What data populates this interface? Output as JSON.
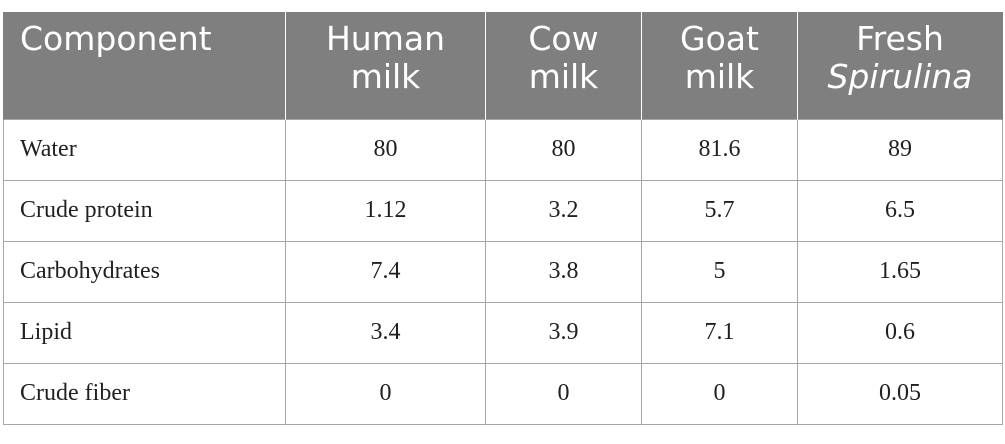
{
  "table": {
    "headers": [
      {
        "line1": "Component",
        "line2": ""
      },
      {
        "line1": "Human",
        "line2": "milk"
      },
      {
        "line1": "Cow",
        "line2": "milk"
      },
      {
        "line1": "Goat",
        "line2": "milk"
      },
      {
        "line1": "Fresh",
        "line2": "Spirulina"
      }
    ],
    "rows": [
      {
        "component": "Water",
        "human": "80",
        "cow": "80",
        "goat": "81.6",
        "spirulina": "89"
      },
      {
        "component": "Crude protein",
        "human": "1.12",
        "cow": "3.2",
        "goat": "5.7",
        "spirulina": "6.5"
      },
      {
        "component": "Carbohydrates",
        "human": "7.4",
        "cow": "3.8",
        "goat": "5",
        "spirulina": "1.65"
      },
      {
        "component": "Lipid",
        "human": "3.4",
        "cow": "3.9",
        "goat": "7.1",
        "spirulina": "0.6"
      },
      {
        "component": "Crude fiber",
        "human": "0",
        "cow": "0",
        "goat": "0",
        "spirulina": "0.05"
      }
    ]
  },
  "colors": {
    "header_bg": "#7f7f7f",
    "header_text": "#ffffff",
    "border": "#a6a6a6",
    "body_text": "#231f20"
  }
}
